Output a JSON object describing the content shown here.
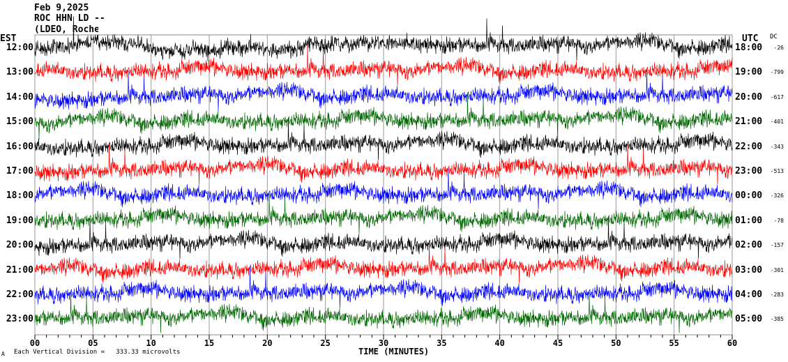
{
  "header": {
    "date": "Feb 9,2025",
    "station": "ROC HHN LD --",
    "network": "(LDEO, Rochester)"
  },
  "left_axis_label": "EST",
  "right_axis_label": "UTC",
  "dc_label": "DC",
  "footer": {
    "scale": "Each Vertical Division =   333.33 microvolts",
    "mark": "A"
  },
  "chart_data": {
    "type": "line",
    "title": "ROC HHN LD -- Feb 9,2025",
    "xlabel": "TIME (MINUTES)",
    "xlim": [
      0,
      60
    ],
    "x_ticks": [
      "00",
      "05",
      "10",
      "15",
      "20",
      "25",
      "30",
      "35",
      "40",
      "45",
      "50",
      "55",
      "60"
    ],
    "grid": true,
    "rows": [
      {
        "est": "12:00",
        "utc": "18:00",
        "dc": "-26",
        "color": "#000000"
      },
      {
        "est": "13:00",
        "utc": "19:00",
        "dc": "-799",
        "color": "#ff0000"
      },
      {
        "est": "14:00",
        "utc": "20:00",
        "dc": "-617",
        "color": "#0000ff"
      },
      {
        "est": "15:00",
        "utc": "21:00",
        "dc": "-401",
        "color": "#006600"
      },
      {
        "est": "16:00",
        "utc": "22:00",
        "dc": "-343",
        "color": "#000000"
      },
      {
        "est": "17:00",
        "utc": "23:00",
        "dc": "-513",
        "color": "#ff0000"
      },
      {
        "est": "18:00",
        "utc": "00:00",
        "dc": "-326",
        "color": "#0000ff"
      },
      {
        "est": "19:00",
        "utc": "01:00",
        "dc": "-78",
        "color": "#006600"
      },
      {
        "est": "20:00",
        "utc": "02:00",
        "dc": "-157",
        "color": "#000000"
      },
      {
        "est": "21:00",
        "utc": "03:00",
        "dc": "-301",
        "color": "#ff0000"
      },
      {
        "est": "22:00",
        "utc": "04:00",
        "dc": "-283",
        "color": "#0000ff"
      },
      {
        "est": "23:00",
        "utc": "05:00",
        "dc": "-385",
        "color": "#006600"
      }
    ]
  }
}
